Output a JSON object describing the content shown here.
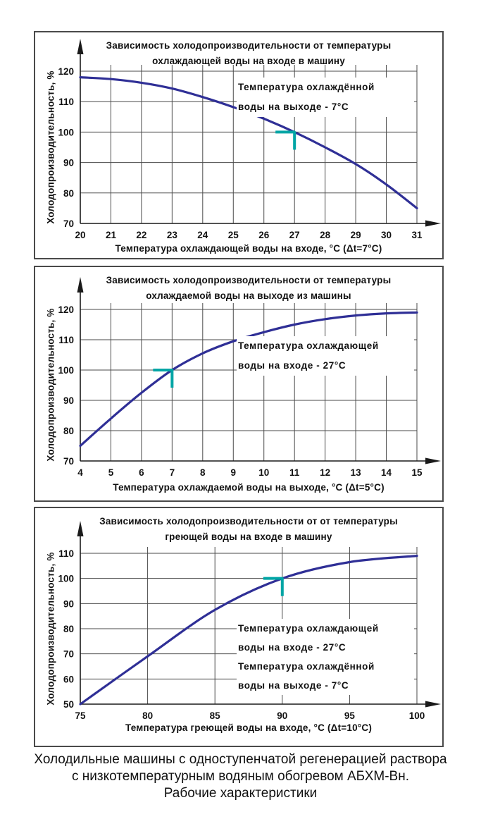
{
  "colors": {
    "curve": "#2f2f96",
    "marker": "#00a5a5",
    "grid": "#4a4a4a",
    "axis": "#1a1a1a",
    "text": "#111111",
    "box_border": "#4a4a4a",
    "background": "#ffffff"
  },
  "caption": {
    "lines": [
      "Холодильные машины с одноступенчатой регенерацией раствора",
      "с низкотемпературным водяным обогревом АБХМ-Вн.",
      "Рабочие характеристики"
    ]
  },
  "chart_data": [
    {
      "type": "line",
      "title": "Зависимость холодопроизводительности от температуры охлаждающей воды на входе в машину",
      "title_lines": [
        "Зависимость холодопроизводительности от температуры",
        "охлаждающей воды на входе в машину"
      ],
      "xlabel": "Температура охлаждающей воды на входе, °С (Δt=7°С)",
      "ylabel": "Холодопроизводительность, %",
      "annotation_lines": [
        "Температура охлаждённой",
        "воды на выходе - 7°С"
      ],
      "x": [
        20,
        21,
        22,
        23,
        24,
        25,
        26,
        27,
        28,
        29,
        30,
        31
      ],
      "y": [
        118,
        117.4,
        116.2,
        114.3,
        111.5,
        108.2,
        104.4,
        100,
        95,
        89.5,
        82.8,
        75
      ],
      "xlim": [
        20,
        31
      ],
      "ylim": [
        70,
        120
      ],
      "x_ticks": [
        20,
        21,
        22,
        23,
        24,
        25,
        26,
        27,
        28,
        29,
        30,
        31
      ],
      "y_ticks": [
        70,
        80,
        90,
        100,
        110,
        120
      ],
      "marker_point": {
        "x": 27,
        "y": 100
      },
      "grid": true,
      "legend": false
    },
    {
      "type": "line",
      "title": "Зависимость холодопроизводительности от температуры охлаждаемой воды на выходе из машины",
      "title_lines": [
        "Зависимость холодопроизводительности от температуры",
        "охлаждаемой воды на выходе из машины"
      ],
      "xlabel": "Температура охлаждаемой воды на выходе, °С (Δt=5°С)",
      "ylabel": "Холодопроизводительность, %",
      "annotation_lines": [
        "Температура охлаждающей",
        "воды на входе - 27°С"
      ],
      "x": [
        4,
        5,
        6,
        7,
        8,
        9,
        10,
        11,
        12,
        13,
        14,
        15
      ],
      "y": [
        75,
        84,
        92.5,
        100,
        105.5,
        109.5,
        112.5,
        115,
        116.8,
        118,
        118.7,
        119
      ],
      "xlim": [
        4,
        15
      ],
      "ylim": [
        70,
        120
      ],
      "x_ticks": [
        4,
        5,
        6,
        7,
        8,
        9,
        10,
        11,
        12,
        13,
        14,
        15
      ],
      "y_ticks": [
        70,
        80,
        90,
        100,
        110,
        120
      ],
      "marker_point": {
        "x": 7,
        "y": 100
      },
      "grid": true,
      "legend": false
    },
    {
      "type": "line",
      "title": "Зависимость холодопроизводительности от от температуры греющей воды на входе в машину",
      "title_lines": [
        "Зависимость холодопроизводительности от от температуры",
        "греющей воды на входе в машину"
      ],
      "xlabel": "Температура греющей воды на входе, °С (Δt=10°С)",
      "ylabel": "Холодопроизводительность, %",
      "annotation_lines": [
        "Температура охлаждающей",
        "воды на входе - 27°С",
        "Температура охлаждённой",
        "воды на выходе - 7°С"
      ],
      "x": [
        75,
        80,
        85,
        90,
        95,
        100
      ],
      "y": [
        50,
        69,
        87.5,
        100,
        106.5,
        109
      ],
      "xlim": [
        75,
        100
      ],
      "ylim": [
        50,
        110
      ],
      "x_ticks": [
        75,
        80,
        85,
        90,
        95,
        100
      ],
      "y_ticks": [
        50,
        60,
        70,
        80,
        90,
        100,
        110
      ],
      "marker_point": {
        "x": 90,
        "y": 100
      },
      "grid": true,
      "legend": false
    }
  ]
}
